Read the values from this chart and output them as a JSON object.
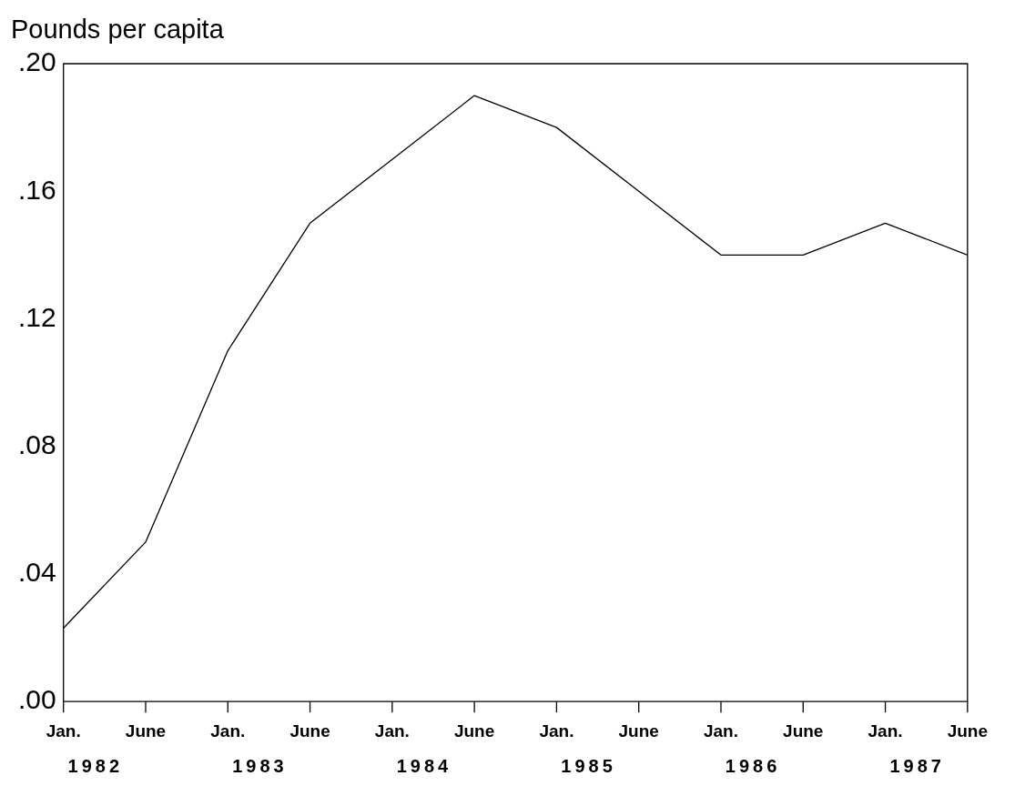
{
  "chart_data": {
    "type": "line",
    "ylabel": "Pounds per capita",
    "categories": [
      "Jan.",
      "June",
      "Jan.",
      "June",
      "Jan.",
      "June",
      "Jan.",
      "June",
      "Jan.",
      "June",
      "Jan.",
      "June"
    ],
    "series": [
      {
        "color": "#000000",
        "values": [
          0.023,
          0.05,
          0.11,
          0.15,
          0.17,
          0.19,
          0.18,
          0.16,
          0.14,
          0.14,
          0.15,
          0.14
        ]
      }
    ],
    "annotations": [
      "1982",
      "1983",
      "1984",
      "1985",
      "1986",
      "1987"
    ],
    "ylim": [
      0,
      0.2
    ],
    "yticks": [
      {
        "value": 0,
        "label": ".00"
      },
      {
        "value": 0.04,
        "label": ".04"
      },
      {
        "value": 0.08,
        "label": ".08"
      },
      {
        "value": 0.12,
        "label": ".12"
      },
      {
        "value": 0.16,
        "label": ".16"
      },
      {
        "value": 0.2,
        "label": ".20"
      }
    ],
    "grid": false,
    "legend": false,
    "marker": "none",
    "line_style": "solid"
  }
}
